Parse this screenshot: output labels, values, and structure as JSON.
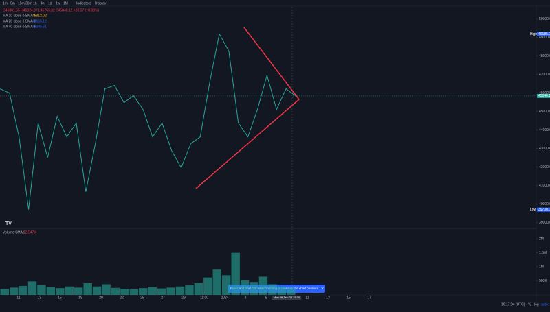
{
  "toolbar": {
    "intervals": [
      "1m",
      "5m",
      "15m",
      "30m",
      "1h",
      "4h",
      "1d",
      "1w",
      "1M"
    ],
    "indicators": "Indicators",
    "display": "Display"
  },
  "legend": {
    "ohlc": "O45801.55 H45824.97 L45763.32 C45840.12 +38.57 (+0.08%)",
    "ma": [
      {
        "label": "MA 10 close 0 SMA 9",
        "value": "45812.02",
        "color": "#f7a600"
      },
      {
        "label": "MA 20 close 0 SMA 9",
        "value": "45665.12",
        "color": "#2962ff"
      },
      {
        "label": "MA 40 close 0 SMA 9",
        "value": "45345.51",
        "color": "#2962ff"
      }
    ]
  },
  "chart_data": [
    {
      "type": "line",
      "series": [
        {
          "name": "BTCUSD",
          "color": "#26a69a",
          "values": [
            46222,
            46000,
            43630,
            39700,
            44370,
            42519,
            44741,
            43630,
            44370,
            40667,
            43259,
            46222,
            46407,
            45481,
            45852,
            45111,
            43630,
            44370,
            42889,
            41963,
            43259,
            43630,
            46593,
            49185,
            48259,
            44370,
            43630,
            45111,
            46963,
            45111,
            46222,
            45840
          ]
        }
      ],
      "ylim": [
        38800,
        50650
      ],
      "yticks": [
        {
          "value": 39000,
          "label": "39000.00"
        },
        {
          "value": 40000,
          "label": "40000.00"
        },
        {
          "value": 41000,
          "label": "41000.00"
        },
        {
          "value": 42000,
          "label": "42000.00"
        },
        {
          "value": 43000,
          "label": "43000.00"
        },
        {
          "value": 44000,
          "label": "44000.00"
        },
        {
          "value": 45000,
          "label": "45000.00"
        },
        {
          "value": 46000,
          "label": "46000.00"
        },
        {
          "value": 47000,
          "label": "47000.00"
        },
        {
          "value": 48000,
          "label": "48000.00"
        },
        {
          "value": 49000,
          "label": "49000.00"
        },
        {
          "value": 50000,
          "label": "50000.00"
        }
      ],
      "high": {
        "name": "High",
        "value": 49185,
        "label": "49185.00"
      },
      "last": {
        "value": 45840.12,
        "label": "45840.12"
      },
      "low": {
        "name": "Low",
        "value": 39700,
        "label": "39700.00"
      },
      "x_labels": [
        "11",
        "13",
        "15",
        "18",
        "20",
        "22",
        "25",
        "27",
        "29",
        "11:00",
        "2024",
        "3",
        "5",
        "8",
        "11",
        "13",
        "15",
        "17"
      ],
      "crosshair_label": "Mon 08 Jan '24  15:30"
    },
    {
      "type": "bar",
      "title": "Volume SMA 9",
      "value_text": "22.547K",
      "color": "#26a69a",
      "values": [
        210000,
        260000,
        320000,
        480000,
        350000,
        280000,
        240000,
        300000,
        260000,
        420000,
        300000,
        380000,
        250000,
        220000,
        200000,
        240000,
        280000,
        230000,
        260000,
        300000,
        340000,
        420000,
        620000,
        900000,
        700000,
        1500000,
        520000,
        460000,
        650000,
        380000,
        300000,
        260000
      ],
      "ylim": [
        0,
        2200000
      ],
      "yticks": [
        {
          "value": 500000,
          "label": "500K"
        },
        {
          "value": 1000000,
          "label": "1M"
        },
        {
          "value": 1500000,
          "label": "1.5M"
        },
        {
          "value": 2000000,
          "label": "2M"
        }
      ]
    }
  ],
  "toast": "Press and hold Ctrl while zooming to maintain the chart position",
  "status": {
    "time": "16:17:34 (UTC)",
    "percent": "%",
    "log": "log",
    "auto": "auto"
  }
}
